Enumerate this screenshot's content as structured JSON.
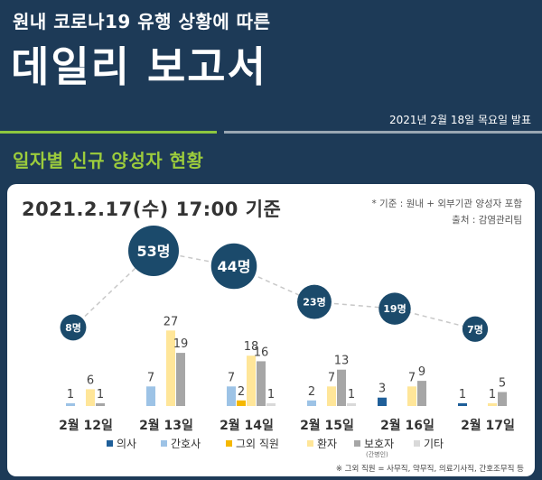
{
  "header": {
    "subtitle": "원내 코로나19 유행 상황에 따른",
    "title": "데일리 보고서",
    "date": "2021년 2월 18일 목요일 발표"
  },
  "section_title": "일자별 신규 양성자 현황",
  "panel": {
    "basis": "2021.2.17(수) 17:00 기준",
    "note_scope": "* 기준 : 원내 + 외부기관 양성자 포함",
    "note_source": "출처 : 감염관리팀",
    "footnote": "※ 그외 직원 = 사무직, 약무직, 의료기사직, 간호조무직 등"
  },
  "chart_data": {
    "type": "bar",
    "categories": [
      "2월 12일",
      "2월 13일",
      "2월 14일",
      "2월 15일",
      "2월 16일",
      "2월 17일"
    ],
    "series": [
      {
        "name": "의사",
        "color": "#1f5f99",
        "values": [
          0,
          0,
          0,
          0,
          3,
          1
        ]
      },
      {
        "name": "간호사",
        "color": "#9dc3e6",
        "values": [
          1,
          7,
          7,
          2,
          0,
          0
        ]
      },
      {
        "name": "그외 직원",
        "color": "#f5b800",
        "values": [
          0,
          0,
          2,
          0,
          0,
          0
        ]
      },
      {
        "name": "환자",
        "color": "#ffe699",
        "values": [
          6,
          27,
          18,
          7,
          7,
          1
        ]
      },
      {
        "name": "보호자",
        "name_sub": "(간병인)",
        "color": "#a6a6a6",
        "values": [
          1,
          19,
          16,
          13,
          9,
          5
        ]
      },
      {
        "name": "기타",
        "color": "#d9d9d9",
        "values": [
          0,
          0,
          1,
          1,
          0,
          0
        ]
      }
    ],
    "totals": [
      8,
      53,
      44,
      23,
      19,
      7
    ],
    "total_labels": [
      "8명",
      "53명",
      "44명",
      "23명",
      "19명",
      "7명"
    ],
    "bar_labels": [
      [
        {
          "series": 1,
          "text": "1"
        },
        {
          "series": 3,
          "text": "6"
        },
        {
          "series": 4,
          "text": "1"
        }
      ],
      [
        {
          "series": 1,
          "text": "7"
        },
        {
          "series": 3,
          "text": "27"
        },
        {
          "series": 4,
          "text": "19"
        }
      ],
      [
        {
          "series": 1,
          "text": "7"
        },
        {
          "series": 2,
          "text": "2"
        },
        {
          "series": 3,
          "text": "18"
        },
        {
          "series": 4,
          "text": "16"
        },
        {
          "series": 5,
          "text": "1"
        }
      ],
      [
        {
          "series": 1,
          "text": "2"
        },
        {
          "series": 3,
          "text": "7"
        },
        {
          "series": 4,
          "text": "13"
        },
        {
          "series": 5,
          "text": "1"
        }
      ],
      [
        {
          "series": 0,
          "text": "3"
        },
        {
          "series": 3,
          "text": "7"
        },
        {
          "series": 4,
          "text": "9"
        }
      ],
      [
        {
          "series": 0,
          "text": "1"
        },
        {
          "series": 3,
          "text": "1"
        },
        {
          "series": 4,
          "text": "5"
        }
      ]
    ],
    "legend_position": "bottom",
    "grid": false
  }
}
